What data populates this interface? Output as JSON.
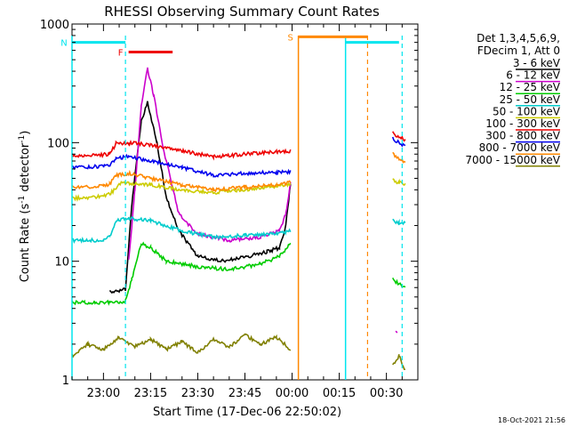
{
  "chart_data": {
    "type": "line",
    "title": "RHESSI Observing Summary Count Rates",
    "xlabel": "Start Time (17-Dec-06 22:50:02)",
    "ylabel_main": "Count Rate (s",
    "ylabel_sup1": "-1",
    "ylabel_mid": " detector",
    "ylabel_sup2": "-1",
    "ylabel_end": ")",
    "yscale": "log",
    "ylim": [
      1,
      1000
    ],
    "xlim_minutes": [
      -10,
      100
    ],
    "xticks": [
      {
        "m": 0,
        "label": "23:00"
      },
      {
        "m": 15,
        "label": "23:15"
      },
      {
        "m": 30,
        "label": "23:30"
      },
      {
        "m": 45,
        "label": "23:45"
      },
      {
        "m": 60,
        "label": "00:00"
      },
      {
        "m": 75,
        "label": "00:15"
      },
      {
        "m": 90,
        "label": "00:30"
      }
    ],
    "yticks": [
      {
        "v": 1,
        "label": "1"
      },
      {
        "v": 10,
        "label": "10"
      },
      {
        "v": 100,
        "label": "100"
      },
      {
        "v": 1000,
        "label": "1000"
      }
    ],
    "legend_header": [
      "Det 1,3,4,5,6,9,",
      "FDecim 1, Att 0"
    ],
    "legend_placement": "right",
    "series": [
      {
        "name": "3 - 6 keV",
        "color": "#000000",
        "points": [
          [
            2,
            5.5
          ],
          [
            7,
            5.8
          ],
          [
            9,
            30
          ],
          [
            12,
            150
          ],
          [
            14,
            220
          ],
          [
            17,
            100
          ],
          [
            20,
            35
          ],
          [
            24,
            18
          ],
          [
            30,
            11
          ],
          [
            38,
            10
          ],
          [
            46,
            11
          ],
          [
            52,
            12
          ],
          [
            56,
            13
          ],
          [
            58,
            20
          ],
          [
            59.5,
            45
          ]
        ]
      },
      {
        "name": "6 - 12 keV",
        "color": "#cc00cc",
        "points": [
          [
            8,
            10
          ],
          [
            10,
            40
          ],
          [
            12,
            200
          ],
          [
            14,
            420
          ],
          [
            16,
            250
          ],
          [
            19,
            90
          ],
          [
            24,
            25
          ],
          [
            30,
            17
          ],
          [
            40,
            15
          ],
          [
            50,
            16
          ],
          [
            56,
            18
          ],
          [
            58,
            25
          ],
          [
            59.5,
            45
          ]
        ]
      },
      {
        "name": "12 - 25 keV",
        "color": "#00cc00",
        "points": [
          [
            -10,
            4.5
          ],
          [
            -6,
            4.5
          ],
          [
            -3,
            4.5
          ],
          [
            2,
            4.5
          ],
          [
            7,
            4.6
          ],
          [
            9,
            7
          ],
          [
            12,
            14
          ],
          [
            15,
            13
          ],
          [
            20,
            10
          ],
          [
            30,
            9
          ],
          [
            40,
            8.5
          ],
          [
            50,
            9.5
          ],
          [
            56,
            11
          ],
          [
            59.5,
            14
          ]
        ]
      },
      {
        "name": "25 - 50 keV",
        "color": "#00cccc",
        "points": [
          [
            -10,
            15
          ],
          [
            -5,
            15
          ],
          [
            0,
            15
          ],
          [
            2,
            16
          ],
          [
            4,
            22
          ],
          [
            8,
            23
          ],
          [
            15,
            22
          ],
          [
            25,
            18
          ],
          [
            35,
            16
          ],
          [
            45,
            16.5
          ],
          [
            55,
            17
          ],
          [
            59.5,
            18
          ]
        ]
      },
      {
        "name": "50 - 100 keV",
        "color": "#cccc00",
        "points": [
          [
            -10,
            34
          ],
          [
            0,
            35
          ],
          [
            2,
            37
          ],
          [
            6,
            46
          ],
          [
            15,
            44
          ],
          [
            25,
            40
          ],
          [
            35,
            38
          ],
          [
            45,
            40
          ],
          [
            55,
            43
          ],
          [
            59.5,
            45
          ]
        ]
      },
      {
        "name": "100 - 300 keV",
        "color": "#ee0000",
        "points": [
          [
            -10,
            78
          ],
          [
            0,
            79
          ],
          [
            2,
            80
          ],
          [
            4,
            98
          ],
          [
            8,
            100
          ],
          [
            15,
            95
          ],
          [
            25,
            85
          ],
          [
            35,
            76
          ],
          [
            45,
            80
          ],
          [
            55,
            84
          ],
          [
            59.5,
            85
          ]
        ]
      },
      {
        "name": "300 - 800 keV",
        "color": "#0000ee",
        "points": [
          [
            -10,
            62
          ],
          [
            0,
            63
          ],
          [
            2,
            65
          ],
          [
            4,
            74
          ],
          [
            8,
            76
          ],
          [
            15,
            70
          ],
          [
            25,
            62
          ],
          [
            35,
            53
          ],
          [
            45,
            55
          ],
          [
            55,
            56
          ],
          [
            59.5,
            57
          ]
        ]
      },
      {
        "name": "800 - 7000 keV",
        "color": "#ff8800",
        "points": [
          [
            -10,
            42
          ],
          [
            0,
            43
          ],
          [
            2,
            45
          ],
          [
            4,
            53
          ],
          [
            8,
            55
          ],
          [
            15,
            50
          ],
          [
            25,
            44
          ],
          [
            35,
            40
          ],
          [
            45,
            42
          ],
          [
            55,
            44
          ],
          [
            59.5,
            46
          ]
        ]
      },
      {
        "name": "7000 - 15000 keV",
        "color": "#808000",
        "points": [
          [
            -10,
            1.6
          ],
          [
            -5,
            2
          ],
          [
            0,
            1.8
          ],
          [
            5,
            2.3
          ],
          [
            10,
            1.9
          ],
          [
            15,
            2.2
          ],
          [
            20,
            1.8
          ],
          [
            25,
            2.1
          ],
          [
            30,
            1.7
          ],
          [
            35,
            2.2
          ],
          [
            40,
            1.9
          ],
          [
            45,
            2.4
          ],
          [
            50,
            2
          ],
          [
            55,
            2.3
          ],
          [
            59.5,
            1.8
          ]
        ]
      }
    ],
    "late_segments": [
      {
        "series": "100 - 300 keV",
        "points": [
          [
            92,
            120
          ],
          [
            94,
            112
          ],
          [
            96,
            105
          ]
        ]
      },
      {
        "series": "300 - 800 keV",
        "points": [
          [
            92,
            108
          ],
          [
            94,
            100
          ],
          [
            96,
            92
          ]
        ]
      },
      {
        "series": "800 - 7000 keV",
        "points": [
          [
            92,
            80
          ],
          [
            94,
            74
          ],
          [
            96,
            68
          ]
        ]
      },
      {
        "series": "50 - 100 keV",
        "points": [
          [
            92,
            48
          ],
          [
            94,
            46
          ],
          [
            96,
            45
          ]
        ]
      },
      {
        "series": "25 - 50 keV",
        "points": [
          [
            92,
            22
          ],
          [
            94,
            21
          ],
          [
            96,
            21
          ]
        ]
      },
      {
        "series": "12 - 25 keV",
        "points": [
          [
            92,
            7
          ],
          [
            94,
            6.5
          ],
          [
            96,
            6
          ]
        ]
      },
      {
        "series": "6 - 12 keV",
        "points": [
          [
            93,
            2.5
          ],
          [
            93.5,
            2.5
          ]
        ]
      },
      {
        "series": "7000 - 15000 keV",
        "points": [
          [
            92,
            1.3
          ],
          [
            94,
            1.6
          ],
          [
            96,
            1.2
          ]
        ]
      }
    ],
    "flag_bars": [
      {
        "label": "N",
        "color": "#00e5ee",
        "segments": [
          [
            -10,
            7
          ],
          [
            77,
            94
          ]
        ],
        "y": 700
      },
      {
        "label": "F",
        "color": "#ee0000",
        "segments": [
          [
            8,
            22
          ]
        ],
        "y": 580
      },
      {
        "label": "S",
        "color": "#ff8800",
        "segments": [
          [
            62,
            84
          ]
        ],
        "y": 780
      }
    ],
    "solid_vlines": [
      {
        "m": -10,
        "color": "#00e5ee"
      },
      {
        "m": 62,
        "color": "#ff8800"
      },
      {
        "m": 77,
        "color": "#00e5ee"
      }
    ],
    "dashed_vlines": [
      {
        "m": 7,
        "color": "#00e5ee"
      },
      {
        "m": 84,
        "color": "#ff8800"
      },
      {
        "m": 95,
        "color": "#00e5ee"
      }
    ],
    "timestamp": "18-Oct-2021 21:56"
  }
}
